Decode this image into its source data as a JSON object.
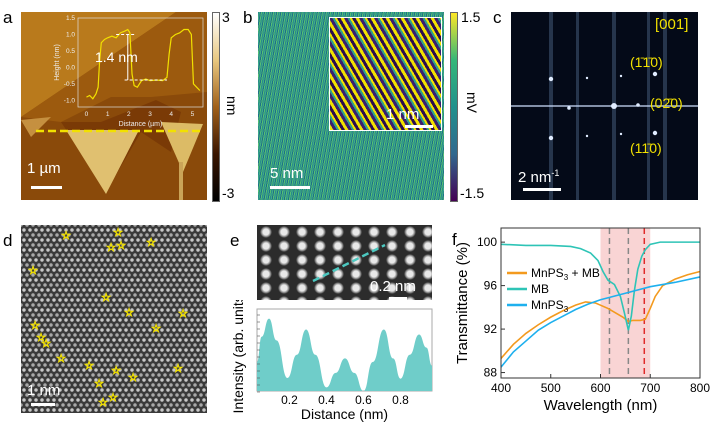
{
  "panels": {
    "a": {
      "label": "a",
      "scale_bar": "1 µm",
      "colorbar": {
        "max": "3",
        "min": "-3",
        "unit": "nm"
      },
      "step_annotation": "1.4 nm"
    },
    "b": {
      "label": "b",
      "scale_bar": "5 nm",
      "inset_scale_bar": "1 nm",
      "colorbar": {
        "max": "1.5",
        "min": "-1.5",
        "unit": "mV"
      }
    },
    "c": {
      "label": "c",
      "scale_bar": "2 nm",
      "scale_bar_sup": "-1",
      "zone_axis": "[001]",
      "indices": [
        "(1̄1̄0)",
        "(02̄0)",
        "(11̄0)"
      ]
    },
    "d": {
      "label": "d",
      "scale_bar": "1 nm"
    },
    "e": {
      "label": "e",
      "scale_bar": "0.2 nm"
    },
    "f": {
      "label": "f"
    }
  },
  "colors": {
    "orange": "#f39a1e",
    "teal": "#2ec4b6",
    "blue": "#1eb0ee",
    "shade": "#f7c6c6",
    "red_dash": "#e02a2a",
    "afm_yellow": "#f2e100"
  },
  "chart_data": [
    {
      "panel": "a-inset",
      "type": "line",
      "xlabel": "Distance (µm)",
      "ylabel": "Height (nm)",
      "xlim": [
        -0.4,
        5.5
      ],
      "ylim": [
        -1.2,
        1.5
      ],
      "xticks": [
        0,
        1,
        2,
        3,
        4,
        5
      ],
      "yticks": [
        -1.0,
        -0.5,
        0.0,
        0.5,
        1.0,
        1.5
      ],
      "ytick_labels": [
        "-1.0",
        "-0.5",
        "0.0",
        "0.5",
        "1.0",
        "1.5"
      ],
      "color": "#f2e100",
      "x": [
        0,
        0.15,
        0.3,
        0.45,
        0.55,
        0.62,
        0.7,
        0.85,
        1.0,
        1.2,
        1.4,
        1.6,
        1.8,
        1.95,
        2.05,
        2.15,
        2.25,
        2.4,
        2.6,
        2.8,
        3.0,
        3.3,
        3.6,
        3.8,
        3.9,
        4.0,
        4.2,
        4.4,
        4.6,
        4.8,
        4.95,
        5.05,
        5.2,
        5.35
      ],
      "y": [
        -0.9,
        -0.85,
        -0.95,
        -0.8,
        -0.6,
        0.2,
        0.75,
        0.85,
        0.9,
        0.95,
        0.9,
        1.05,
        1.1,
        1.15,
        1.05,
        -0.2,
        -0.55,
        -0.6,
        -0.4,
        -0.35,
        -0.4,
        -0.38,
        -0.4,
        -0.3,
        0.4,
        0.9,
        1.0,
        1.05,
        1.15,
        1.15,
        1.0,
        -0.5,
        -0.6,
        -0.7
      ]
    },
    {
      "panel": "e",
      "type": "area",
      "xlabel": "Distance (nm)",
      "ylabel": "Intensity (arb. units)",
      "xlim": [
        0.025,
        0.97
      ],
      "ylim": [
        0,
        1.05
      ],
      "xticks": [
        0.2,
        0.4,
        0.6,
        0.8
      ],
      "xtick_labels": [
        "0.2",
        "0.4",
        "0.6",
        "0.8"
      ],
      "color": "#6fcdc9",
      "x": [
        0.025,
        0.05,
        0.09,
        0.13,
        0.19,
        0.24,
        0.29,
        0.34,
        0.4,
        0.45,
        0.5,
        0.55,
        0.6,
        0.65,
        0.71,
        0.76,
        0.8,
        0.85,
        0.9,
        0.94,
        0.97
      ],
      "y": [
        0.4,
        0.75,
        1.0,
        0.7,
        0.18,
        0.5,
        0.85,
        0.5,
        0.05,
        0.25,
        0.45,
        0.25,
        0.0,
        0.4,
        0.85,
        0.45,
        0.17,
        0.5,
        0.78,
        0.6,
        0.35
      ]
    },
    {
      "panel": "f",
      "type": "line",
      "xlabel": "Wavelength (nm)",
      "ylabel": "Transmittance (%)",
      "xlim": [
        400,
        800
      ],
      "ylim": [
        87.5,
        101.3
      ],
      "xticks": [
        400,
        500,
        600,
        700,
        800
      ],
      "yticks": [
        88,
        92,
        96,
        100
      ],
      "shaded_region": [
        600,
        700
      ],
      "dashed_lines": [
        {
          "x": 618,
          "color": "#888888"
        },
        {
          "x": 656,
          "color": "#888888"
        },
        {
          "x": 688,
          "color": "#e02a2a"
        }
      ],
      "legend": "left",
      "series": [
        {
          "name": "MnPS₃ + MB",
          "color": "#f39a1e",
          "x": [
            400,
            425,
            450,
            475,
            500,
            525,
            550,
            570,
            590,
            600,
            615,
            630,
            645,
            656,
            665,
            680,
            690,
            700,
            710,
            725,
            750,
            775,
            800
          ],
          "y": [
            89.3,
            90.6,
            91.6,
            92.4,
            93.1,
            93.7,
            94.2,
            94.5,
            94.4,
            94.2,
            93.9,
            93.5,
            93.1,
            92.7,
            92.8,
            92.8,
            92.9,
            93.9,
            95.0,
            96.0,
            96.6,
            97.0,
            97.3
          ]
        },
        {
          "name": "MB",
          "color": "#2ec4b6",
          "x": [
            400,
            450,
            500,
            540,
            560,
            580,
            595,
            605,
            615,
            628,
            640,
            648,
            656,
            662,
            668,
            675,
            683,
            690,
            700,
            720,
            750,
            800
          ],
          "y": [
            99.8,
            99.7,
            99.7,
            99.6,
            99.4,
            99.0,
            98.3,
            97.3,
            96.5,
            96.1,
            95.0,
            93.5,
            91.9,
            93.2,
            95.5,
            97.5,
            98.7,
            99.3,
            99.8,
            100.0,
            100.0,
            100.0
          ]
        },
        {
          "name": "MnPS₃",
          "color": "#1eb0ee",
          "x": [
            400,
            425,
            450,
            475,
            500,
            525,
            550,
            575,
            600,
            650,
            700,
            750,
            800
          ],
          "y": [
            88.5,
            89.9,
            90.9,
            91.9,
            92.6,
            93.2,
            93.8,
            94.3,
            94.7,
            95.3,
            95.9,
            96.3,
            96.8
          ]
        }
      ],
      "legend_labels": {
        "s0_main": "MnPS",
        "s0_sub": "3",
        "s0_tail": " + MB",
        "s1": "MB",
        "s2_main": "MnPS",
        "s2_sub": "3"
      }
    }
  ]
}
